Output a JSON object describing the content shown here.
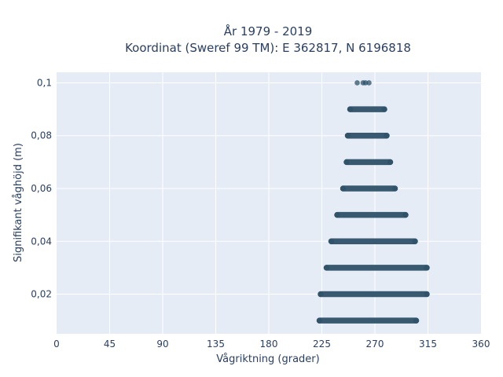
{
  "chart_data": {
    "type": "scatter",
    "title_line1": "År 1979 - 2019",
    "title_line2": "Koordinat (Sweref 99 TM): E 362817, N 6196818",
    "xlabel": "Vågriktning (grader)",
    "ylabel": "Signifikant våghöjd (m)",
    "xlim": [
      0,
      360
    ],
    "ylim": [
      0.005,
      0.104
    ],
    "x_ticks": [
      0,
      45,
      90,
      135,
      180,
      225,
      270,
      315,
      360
    ],
    "y_ticks": [
      0.02,
      0.04,
      0.06,
      0.08,
      0.1
    ],
    "x_tick_labels": [
      "0",
      "45",
      "90",
      "135",
      "180",
      "225",
      "270",
      "315",
      "360"
    ],
    "y_tick_labels": [
      "0,02",
      "0,04",
      "0,06",
      "0,08",
      "0,1"
    ],
    "grid": true,
    "marker_color": "#2e5168",
    "plot_bg": "#e5ecf6",
    "series": [
      {
        "values": [
          {
            "y": 0.01,
            "x_min": 223,
            "x_max": 305
          },
          {
            "y": 0.02,
            "x_min": 224,
            "x_max": 314
          },
          {
            "y": 0.03,
            "x_min": 229,
            "x_max": 314
          },
          {
            "y": 0.04,
            "x_min": 233,
            "x_max": 304
          },
          {
            "y": 0.05,
            "x_min": 238,
            "x_max": 296
          },
          {
            "y": 0.06,
            "x_min": 243,
            "x_max": 287
          },
          {
            "y": 0.07,
            "x_min": 246,
            "x_max": 283
          },
          {
            "y": 0.08,
            "x_min": 247,
            "x_max": 280
          },
          {
            "y": 0.09,
            "x_min": 249,
            "x_max": 278
          },
          {
            "y": 0.1,
            "points": [
              255,
              260,
              262,
              265
            ]
          }
        ]
      }
    ]
  }
}
